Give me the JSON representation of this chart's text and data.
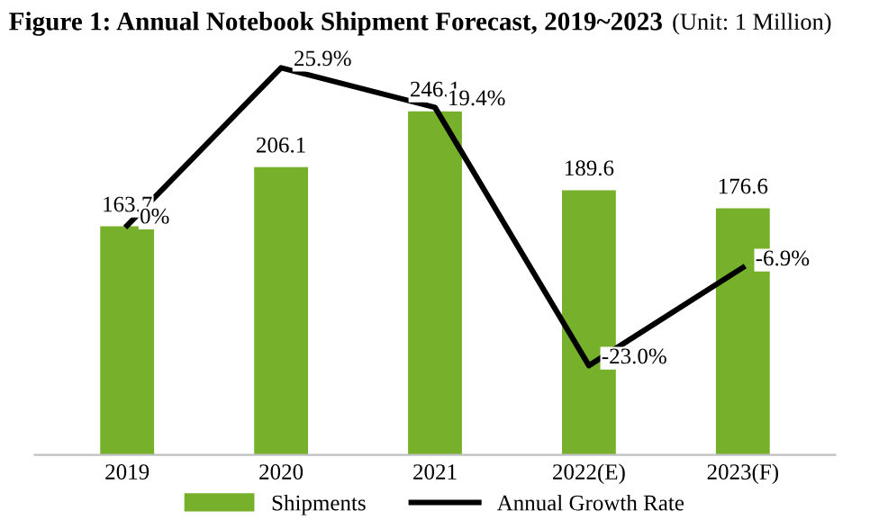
{
  "chart_data": {
    "type": "bar",
    "title": "Figure 1: Annual Notebook Shipment Forecast, 2019~2023",
    "subtitle": "(Unit: 1 Million)",
    "categories": [
      "2019",
      "2020",
      "2021",
      "2022(E)",
      "2023(F)"
    ],
    "series": [
      {
        "name": "Shipments",
        "color": "#77b02a",
        "values": [
          163.7,
          206.1,
          246.1,
          189.6,
          176.6
        ]
      },
      {
        "name": "Annual Growth Rate",
        "type": "line",
        "axis": "y2",
        "color": "#000000",
        "values": [
          0,
          25.9,
          19.4,
          -23.0,
          -6.9
        ],
        "value_labels": [
          "0%",
          "25.9%",
          "19.4%",
          "-23.0%",
          "-6.9%"
        ]
      }
    ],
    "data_labels": true,
    "tick_labels": "x",
    "legend": "bottom",
    "grid": false,
    "marker": "none",
    "line_style": "solid"
  }
}
